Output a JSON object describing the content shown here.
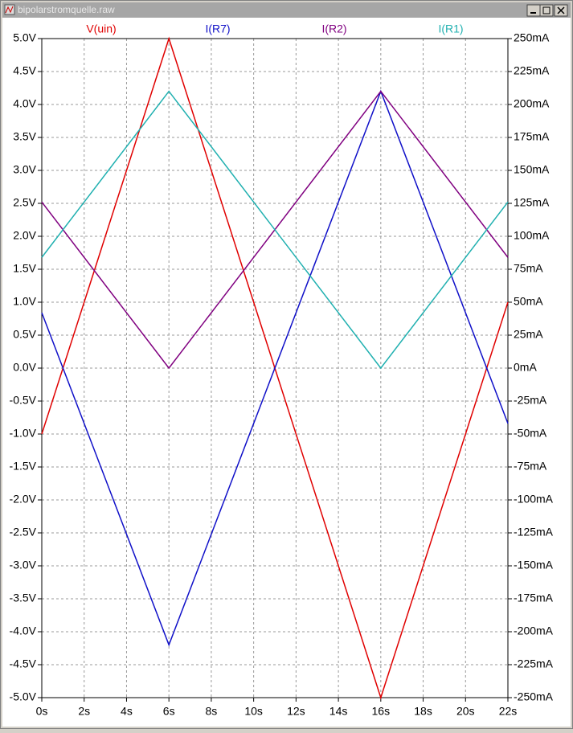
{
  "chart_data": {
    "type": "line",
    "title": "bipolarstromquelle.raw",
    "x": [
      0,
      6,
      16,
      22
    ],
    "series": [
      {
        "name": "V(uin)",
        "color": "#e00000",
        "values": [
          -1.0,
          5.0,
          -5.0,
          1.0
        ]
      },
      {
        "name": "I(R7)",
        "color": "#1010c8",
        "axis": "y2",
        "values": [
          42,
          -210,
          210,
          -42
        ]
      },
      {
        "name": "I(R2)",
        "color": "#800080",
        "axis": "y2",
        "values": [
          126,
          0,
          210,
          84
        ]
      },
      {
        "name": "I(R1)",
        "color": "#20b0b0",
        "axis": "y2",
        "values": [
          84,
          210,
          0,
          126
        ]
      }
    ],
    "xlim": [
      0,
      22
    ],
    "xticks": [
      {
        "value": 0,
        "label": "0s"
      },
      {
        "value": 2,
        "label": "2s"
      },
      {
        "value": 4,
        "label": "4s"
      },
      {
        "value": 6,
        "label": "6s"
      },
      {
        "value": 8,
        "label": "8s"
      },
      {
        "value": 10,
        "label": "10s"
      },
      {
        "value": 12,
        "label": "12s"
      },
      {
        "value": 14,
        "label": "14s"
      },
      {
        "value": 16,
        "label": "16s"
      },
      {
        "value": 18,
        "label": "18s"
      },
      {
        "value": 20,
        "label": "20s"
      },
      {
        "value": 22,
        "label": "22s"
      }
    ],
    "ylim": [
      -5,
      5
    ],
    "yticks": [
      {
        "value": 5,
        "label": "5.0V"
      },
      {
        "value": 4.5,
        "label": "4.5V"
      },
      {
        "value": 4,
        "label": "4.0V"
      },
      {
        "value": 3.5,
        "label": "3.5V"
      },
      {
        "value": 3,
        "label": "3.0V"
      },
      {
        "value": 2.5,
        "label": "2.5V"
      },
      {
        "value": 2,
        "label": "2.0V"
      },
      {
        "value": 1.5,
        "label": "1.5V"
      },
      {
        "value": 1,
        "label": "1.0V"
      },
      {
        "value": 0.5,
        "label": "0.5V"
      },
      {
        "value": 0,
        "label": "0.0V"
      },
      {
        "value": -0.5,
        "label": "-0.5V"
      },
      {
        "value": -1,
        "label": "-1.0V"
      },
      {
        "value": -1.5,
        "label": "-1.5V"
      },
      {
        "value": -2,
        "label": "-2.0V"
      },
      {
        "value": -2.5,
        "label": "-2.5V"
      },
      {
        "value": -3,
        "label": "-3.0V"
      },
      {
        "value": -3.5,
        "label": "-3.5V"
      },
      {
        "value": -4,
        "label": "-4.0V"
      },
      {
        "value": -4.5,
        "label": "-4.5V"
      },
      {
        "value": -5,
        "label": "-5.0V"
      }
    ],
    "y2lim": [
      -250,
      250
    ],
    "y2ticks": [
      {
        "value": 250,
        "label": "250mA"
      },
      {
        "value": 225,
        "label": "225mA"
      },
      {
        "value": 200,
        "label": "200mA"
      },
      {
        "value": 175,
        "label": "175mA"
      },
      {
        "value": 150,
        "label": "150mA"
      },
      {
        "value": 125,
        "label": "125mA"
      },
      {
        "value": 100,
        "label": "100mA"
      },
      {
        "value": 75,
        "label": "75mA"
      },
      {
        "value": 50,
        "label": "50mA"
      },
      {
        "value": 25,
        "label": "25mA"
      },
      {
        "value": 0,
        "label": "0mA"
      },
      {
        "value": -25,
        "label": "-25mA"
      },
      {
        "value": -50,
        "label": "-50mA"
      },
      {
        "value": -75,
        "label": "-75mA"
      },
      {
        "value": -100,
        "label": "-100mA"
      },
      {
        "value": -125,
        "label": "-125mA"
      },
      {
        "value": -150,
        "label": "-150mA"
      },
      {
        "value": -175,
        "label": "-175mA"
      },
      {
        "value": -200,
        "label": "-200mA"
      },
      {
        "value": -225,
        "label": "-225mA"
      },
      {
        "value": -250,
        "label": "-250mA"
      }
    ],
    "grid": true
  }
}
